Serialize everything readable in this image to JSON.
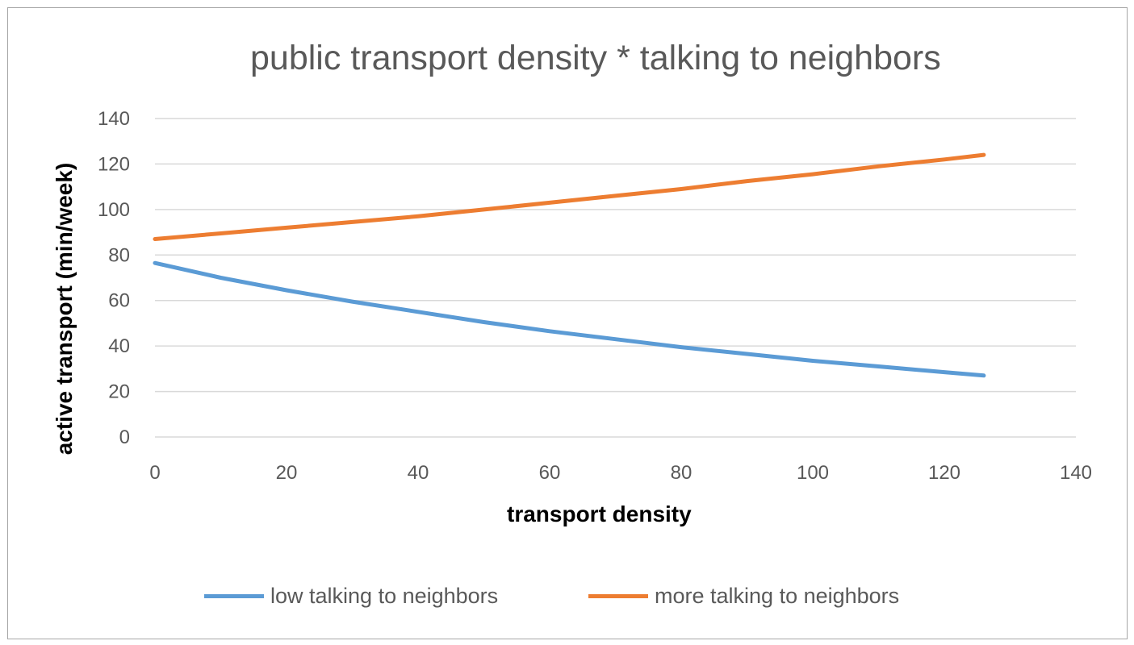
{
  "chart_data": {
    "type": "line",
    "title": "public transport density * talking to neighbors",
    "xlabel": "transport density",
    "ylabel": "active transport (min/week)",
    "xlim": [
      0,
      140
    ],
    "ylim": [
      0,
      140
    ],
    "x_ticks": [
      "0",
      "20",
      "40",
      "60",
      "80",
      "100",
      "120",
      "140"
    ],
    "y_ticks": [
      "0",
      "20",
      "40",
      "60",
      "80",
      "100",
      "120",
      "140"
    ],
    "grid": "horizontal",
    "legend_position": "bottom",
    "series": [
      {
        "name": "low talking to neighbors",
        "color": "#5b9bd5",
        "x": [
          0,
          10,
          20,
          30,
          40,
          50,
          60,
          70,
          80,
          90,
          100,
          110,
          120,
          126
        ],
        "y": [
          76.5,
          70,
          64.5,
          59.5,
          55,
          50.5,
          46.5,
          43,
          39.5,
          36.5,
          33.5,
          31,
          28.5,
          27
        ]
      },
      {
        "name": "more talking to neighbors",
        "color": "#ed7d31",
        "x": [
          0,
          10,
          20,
          30,
          40,
          50,
          60,
          70,
          80,
          90,
          100,
          110,
          120,
          126
        ],
        "y": [
          87,
          89.5,
          92,
          94.5,
          97,
          100,
          103,
          106,
          109,
          112.5,
          115.5,
          119,
          122,
          124
        ]
      }
    ]
  }
}
